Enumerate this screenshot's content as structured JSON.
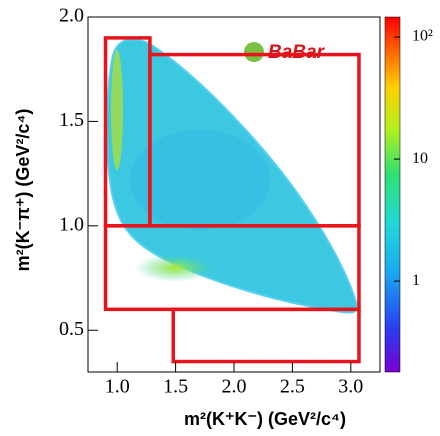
{
  "chart_data": {
    "type": "dalitz",
    "logo": "BaBar",
    "x_label": "m²(K⁺K⁻) (GeV²/c⁴)",
    "y_label": "m²(K⁻π⁺) (GeV²/c⁴)",
    "xlim": [
      0.75,
      3.25
    ],
    "ylim": [
      0.3,
      2.0
    ],
    "xticks": [
      {
        "value": 1,
        "label": "1.0"
      },
      {
        "value": 1.5,
        "label": "1.5"
      },
      {
        "value": 2,
        "label": "2.0"
      },
      {
        "value": 2.5,
        "label": "2.5"
      },
      {
        "value": 3,
        "label": "3.0"
      }
    ],
    "yticks": [
      {
        "value": 0.5,
        "label": "0.5"
      },
      {
        "value": 1,
        "label": "1.0"
      },
      {
        "value": 1.5,
        "label": "1.5"
      },
      {
        "value": 2,
        "label": "2.0"
      }
    ],
    "zlim": [
      0.18,
      146
    ],
    "zlog": true,
    "zticks": [
      1,
      10,
      {
        "value": 100,
        "label": "10²"
      }
    ],
    "region_color": "#e8141b",
    "regions": [
      {
        "x": [
          0.9,
          1.28
        ],
        "y": [
          1.0,
          1.9
        ]
      },
      {
        "x": [
          1.28,
          3.07
        ],
        "y": [
          1.0,
          1.82
        ]
      },
      {
        "x": [
          0.9,
          3.07
        ],
        "y": [
          0.6,
          1.0
        ]
      },
      {
        "x": [
          1.48,
          3.07
        ],
        "y": [
          0.35,
          0.6
        ]
      }
    ]
  }
}
